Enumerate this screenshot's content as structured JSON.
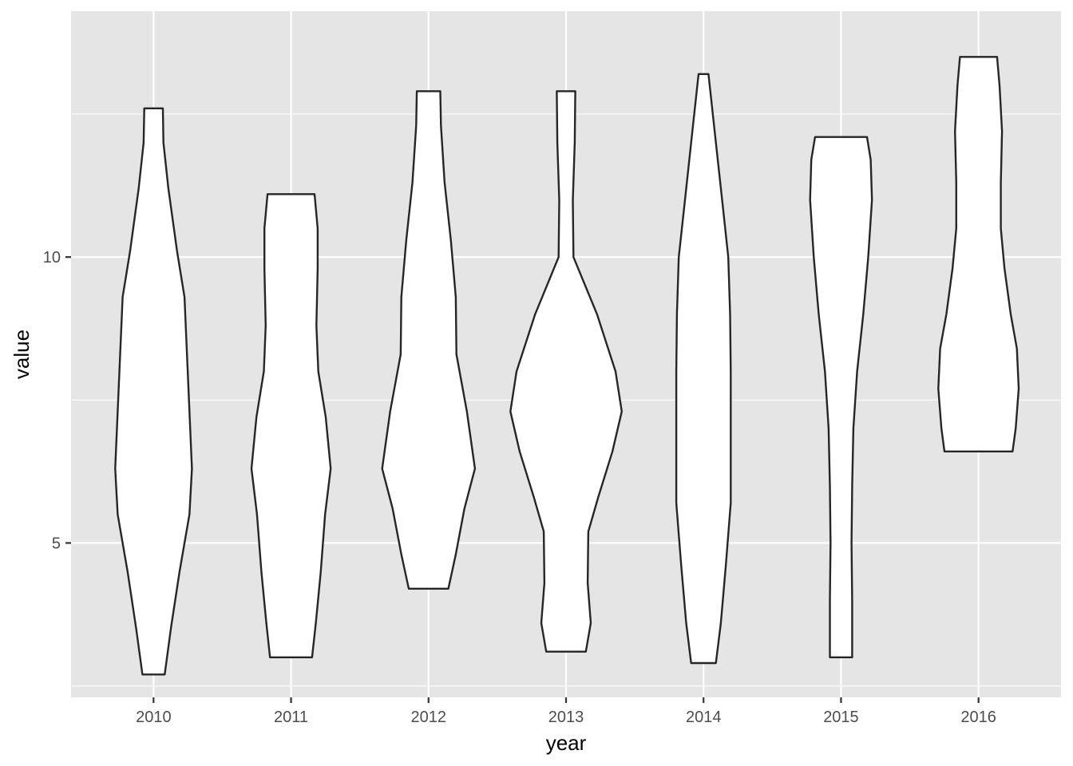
{
  "chart_data": {
    "type": "violin",
    "title": "",
    "xlabel": "year",
    "ylabel": "value",
    "categories": [
      "2010",
      "2011",
      "2012",
      "2013",
      "2014",
      "2015",
      "2016"
    ],
    "ylim": [
      2.3,
      14.3
    ],
    "y_ticks": [
      5,
      10
    ],
    "y_minor_gridlines": [
      2.5,
      7.5,
      12.5
    ],
    "grid": true,
    "legend": "none",
    "colors": {
      "panel": "#e5e5e5",
      "grid": "#ffffff",
      "violin_fill": "#ffffff",
      "violin_stroke": "#262626",
      "tick_text": "#4d4d4d"
    },
    "series": [
      {
        "category": "2010",
        "y_min": 2.7,
        "y_max": 12.6,
        "density": [
          [
            2.7,
            0.18
          ],
          [
            3.5,
            0.28
          ],
          [
            4.5,
            0.42
          ],
          [
            5.5,
            0.58
          ],
          [
            6.3,
            0.62
          ],
          [
            7.3,
            0.58
          ],
          [
            8.3,
            0.54
          ],
          [
            9.3,
            0.5
          ],
          [
            10.1,
            0.38
          ],
          [
            11.2,
            0.24
          ],
          [
            12.0,
            0.16
          ],
          [
            12.6,
            0.15
          ]
        ]
      },
      {
        "category": "2011",
        "y_min": 3.0,
        "y_max": 11.1,
        "density": [
          [
            3.0,
            0.34
          ],
          [
            3.6,
            0.4
          ],
          [
            4.5,
            0.48
          ],
          [
            5.5,
            0.55
          ],
          [
            6.3,
            0.64
          ],
          [
            7.2,
            0.56
          ],
          [
            8.0,
            0.44
          ],
          [
            8.8,
            0.41
          ],
          [
            9.8,
            0.43
          ],
          [
            10.5,
            0.43
          ],
          [
            11.1,
            0.38
          ]
        ]
      },
      {
        "category": "2012",
        "y_min": 4.2,
        "y_max": 12.9,
        "density": [
          [
            4.2,
            0.32
          ],
          [
            4.8,
            0.44
          ],
          [
            5.6,
            0.58
          ],
          [
            6.3,
            0.75
          ],
          [
            7.3,
            0.62
          ],
          [
            8.3,
            0.45
          ],
          [
            9.3,
            0.44
          ],
          [
            10.3,
            0.36
          ],
          [
            11.3,
            0.26
          ],
          [
            12.3,
            0.2
          ],
          [
            12.9,
            0.19
          ]
        ]
      },
      {
        "category": "2013",
        "y_min": 3.1,
        "y_max": 12.9,
        "density": [
          [
            3.1,
            0.32
          ],
          [
            3.6,
            0.4
          ],
          [
            4.3,
            0.35
          ],
          [
            5.2,
            0.36
          ],
          [
            5.8,
            0.52
          ],
          [
            6.6,
            0.75
          ],
          [
            7.3,
            0.9
          ],
          [
            8.0,
            0.8
          ],
          [
            9.0,
            0.5
          ],
          [
            10.0,
            0.12
          ],
          [
            11.0,
            0.11
          ],
          [
            12.0,
            0.14
          ],
          [
            12.9,
            0.15
          ]
        ]
      },
      {
        "category": "2014",
        "y_min": 2.9,
        "y_max": 13.2,
        "density": [
          [
            2.9,
            0.2
          ],
          [
            3.6,
            0.28
          ],
          [
            4.6,
            0.36
          ],
          [
            5.7,
            0.44
          ],
          [
            6.8,
            0.44
          ],
          [
            8.0,
            0.44
          ],
          [
            9.0,
            0.43
          ],
          [
            10.0,
            0.4
          ],
          [
            11.0,
            0.3
          ],
          [
            12.0,
            0.2
          ],
          [
            12.8,
            0.12
          ],
          [
            13.2,
            0.08
          ]
        ]
      },
      {
        "category": "2015",
        "y_min": 3.0,
        "y_max": 12.1,
        "density": [
          [
            3.0,
            0.18
          ],
          [
            4.0,
            0.18
          ],
          [
            5.0,
            0.17
          ],
          [
            6.0,
            0.18
          ],
          [
            7.0,
            0.2
          ],
          [
            8.0,
            0.26
          ],
          [
            9.0,
            0.36
          ],
          [
            10.0,
            0.44
          ],
          [
            11.0,
            0.5
          ],
          [
            11.7,
            0.48
          ],
          [
            12.1,
            0.42
          ]
        ]
      },
      {
        "category": "2016",
        "y_min": 6.6,
        "y_max": 13.5,
        "density": [
          [
            6.6,
            0.55
          ],
          [
            7.0,
            0.6
          ],
          [
            7.7,
            0.65
          ],
          [
            8.4,
            0.62
          ],
          [
            9.0,
            0.52
          ],
          [
            9.8,
            0.42
          ],
          [
            10.5,
            0.36
          ],
          [
            11.3,
            0.36
          ],
          [
            12.2,
            0.38
          ],
          [
            13.0,
            0.34
          ],
          [
            13.5,
            0.3
          ]
        ]
      }
    ]
  }
}
